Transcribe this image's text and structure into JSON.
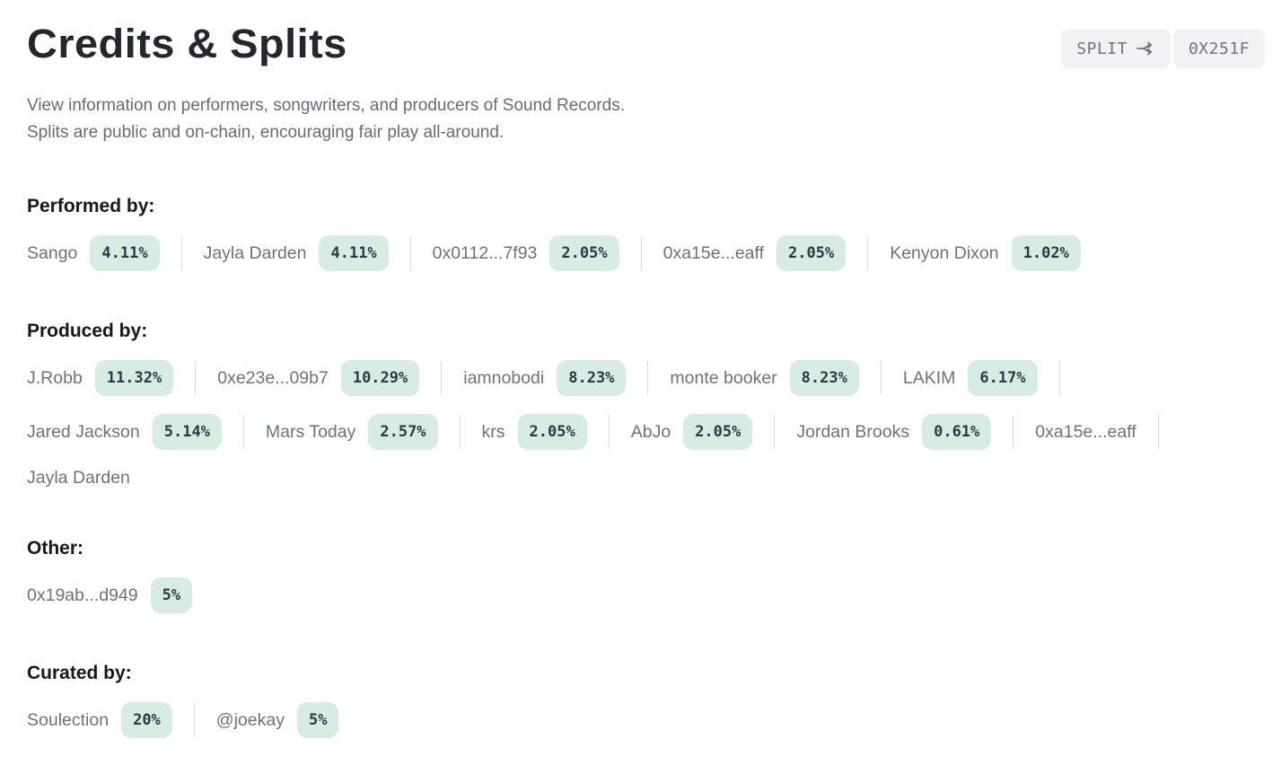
{
  "page": {
    "title": "Credits & Splits",
    "subtitle_line1": "View information on performers, songwriters, and producers of Sound Records.",
    "subtitle_line2": "Splits are public and on-chain, encouraging fair play all-around."
  },
  "header_buttons": {
    "split_label": "SPLIT",
    "split_icon": "split-arrows-icon",
    "address_label": "0X251F"
  },
  "colors": {
    "badge_bg": "#d7ece2",
    "badge_text": "#2e3945",
    "name_text": "#6b7280",
    "heading_text": "#14181f",
    "button_bg": "#f1f2f4",
    "button_text": "#6e7483",
    "separator": "#d8dadf"
  },
  "sections": [
    {
      "label": "Performed by:",
      "entries": [
        {
          "name": "Sango",
          "pct": "4.11%"
        },
        {
          "name": "Jayla Darden",
          "pct": "4.11%"
        },
        {
          "name": "0x0112...7f93",
          "pct": "2.05%"
        },
        {
          "name": "0xa15e...eaff",
          "pct": "2.05%"
        },
        {
          "name": "Kenyon Dixon",
          "pct": "1.02%"
        }
      ]
    },
    {
      "label": "Produced by:",
      "entries": [
        {
          "name": "J.Robb",
          "pct": "11.32%"
        },
        {
          "name": "0xe23e...09b7",
          "pct": "10.29%"
        },
        {
          "name": "iamnobodi",
          "pct": "8.23%"
        },
        {
          "name": "monte booker",
          "pct": "8.23%"
        },
        {
          "name": "LAKIM",
          "pct": "6.17%"
        },
        {
          "name": "Jared Jackson",
          "pct": "5.14%"
        },
        {
          "name": "Mars Today",
          "pct": "2.57%"
        },
        {
          "name": "krs",
          "pct": "2.05%"
        },
        {
          "name": "AbJo",
          "pct": "2.05%"
        },
        {
          "name": "Jordan Brooks",
          "pct": "0.61%"
        },
        {
          "name": "0xa15e...eaff",
          "pct": null
        },
        {
          "name": "Jayla Darden",
          "pct": null
        }
      ]
    },
    {
      "label": "Other:",
      "entries": [
        {
          "name": "0x19ab...d949",
          "pct": "5%"
        }
      ]
    },
    {
      "label": "Curated by:",
      "entries": [
        {
          "name": "Soulection",
          "pct": "20%"
        },
        {
          "name": "@joekay",
          "pct": "5%"
        }
      ]
    }
  ]
}
